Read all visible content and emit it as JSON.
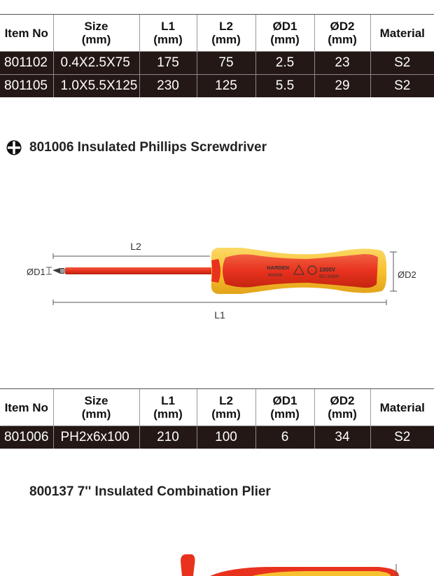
{
  "table_headers": {
    "item_no": "Item No",
    "size": "Size",
    "size_unit": "(mm)",
    "l1": "L1",
    "l1_unit": "(mm)",
    "l2": "L2",
    "l2_unit": "(mm)",
    "d1": "ØD1",
    "d1_unit": "(mm)",
    "d2": "ØD2",
    "d2_unit": "(mm)",
    "material": "Material"
  },
  "table1": {
    "rows": [
      {
        "item": "801102",
        "size": "0.4X2.5X75",
        "l1": "175",
        "l2": "75",
        "d1": "2.5",
        "d2": "23",
        "material": "S2"
      },
      {
        "item": "801105",
        "size": "1.0X5.5X125",
        "l1": "230",
        "l2": "125",
        "d1": "5.5",
        "d2": "29",
        "material": "S2"
      }
    ]
  },
  "section1": {
    "icon": "phillips-cross-icon",
    "title": "801006  Insulated Phillips Screwdriver"
  },
  "figure": {
    "l2_label": "L2",
    "l1_label": "L1",
    "d1_label": "ØD1",
    "d2_label": "ØD2",
    "brand": "HARDEN",
    "model": "801006",
    "voltage": "1000V",
    "standard": "IEC 60900",
    "colors": {
      "red": "#e8321e",
      "yellow": "#f8c12f"
    }
  },
  "table2": {
    "rows": [
      {
        "item": "801006",
        "size": "PH2x6x100",
        "l1": "210",
        "l2": "100",
        "d1": "6",
        "d2": "34",
        "material": "S2"
      }
    ]
  },
  "section2": {
    "title": "800137  7'' Insulated Combination Plier"
  }
}
